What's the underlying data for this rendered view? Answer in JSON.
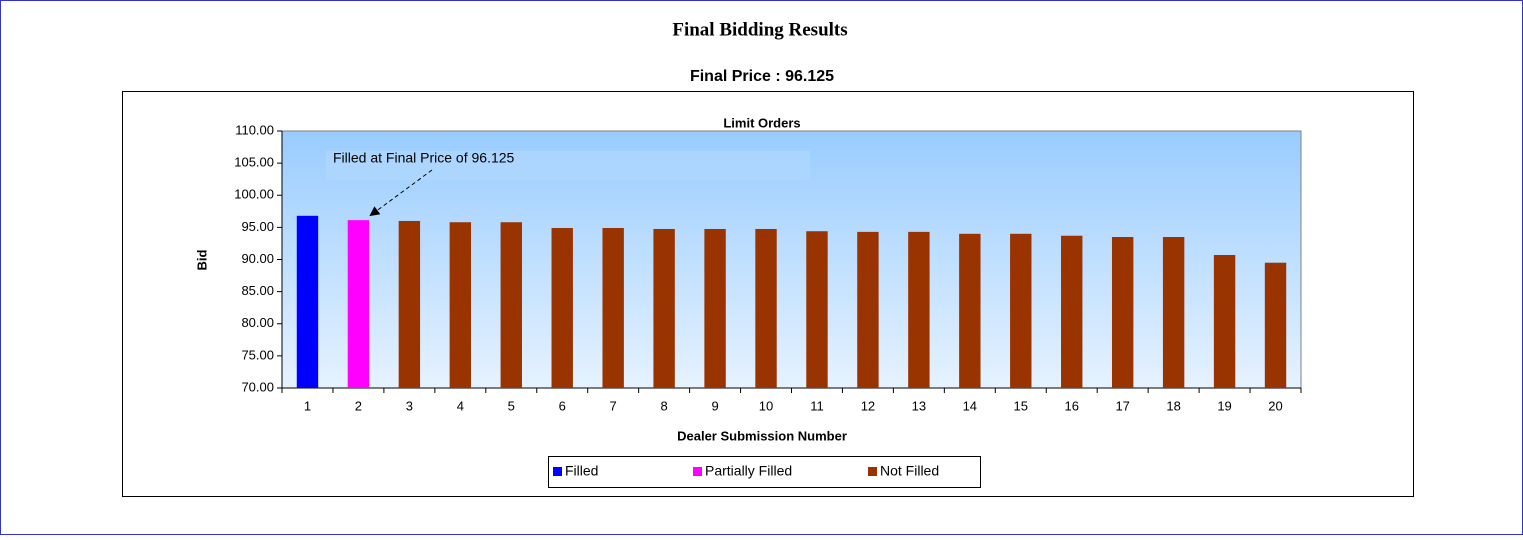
{
  "page_title": "Final Bidding Results",
  "chart_data": {
    "type": "bar",
    "subtitle": "Final Price : 96.125",
    "title": "Limit Orders",
    "annotation": "Filled at Final Price of 96.125",
    "xlabel": "Dealer Submission Number",
    "ylabel": "Bid",
    "categories": [
      "1",
      "2",
      "3",
      "4",
      "5",
      "6",
      "7",
      "8",
      "9",
      "10",
      "11",
      "12",
      "13",
      "14",
      "15",
      "16",
      "17",
      "18",
      "19",
      "20"
    ],
    "series": [
      {
        "name": "Filled",
        "color": "#0000ff",
        "values": [
          96.8,
          null,
          null,
          null,
          null,
          null,
          null,
          null,
          null,
          null,
          null,
          null,
          null,
          null,
          null,
          null,
          null,
          null,
          null,
          null
        ]
      },
      {
        "name": "Partially Filled",
        "color": "#ff00ff",
        "values": [
          null,
          96.125,
          null,
          null,
          null,
          null,
          null,
          null,
          null,
          null,
          null,
          null,
          null,
          null,
          null,
          null,
          null,
          null,
          null,
          null
        ]
      },
      {
        "name": "Not Filled",
        "color": "#993300",
        "values": [
          null,
          null,
          96.0,
          95.8,
          95.8,
          94.9,
          94.9,
          94.75,
          94.75,
          94.75,
          94.4,
          94.3,
          94.3,
          94.0,
          94.0,
          93.7,
          93.5,
          93.5,
          90.7,
          89.5
        ]
      }
    ],
    "ylim": [
      70,
      110
    ],
    "yticks": [
      {
        "value": 70,
        "label": "70.00"
      },
      {
        "value": 75,
        "label": "75.00"
      },
      {
        "value": 80,
        "label": "80.00"
      },
      {
        "value": 85,
        "label": "85.00"
      },
      {
        "value": 90,
        "label": "90.00"
      },
      {
        "value": 95,
        "label": "95.00"
      },
      {
        "value": 100,
        "label": "100.00"
      },
      {
        "value": 105,
        "label": "105.00"
      },
      {
        "value": 110,
        "label": "110.00"
      }
    ],
    "legend": "bottom"
  }
}
